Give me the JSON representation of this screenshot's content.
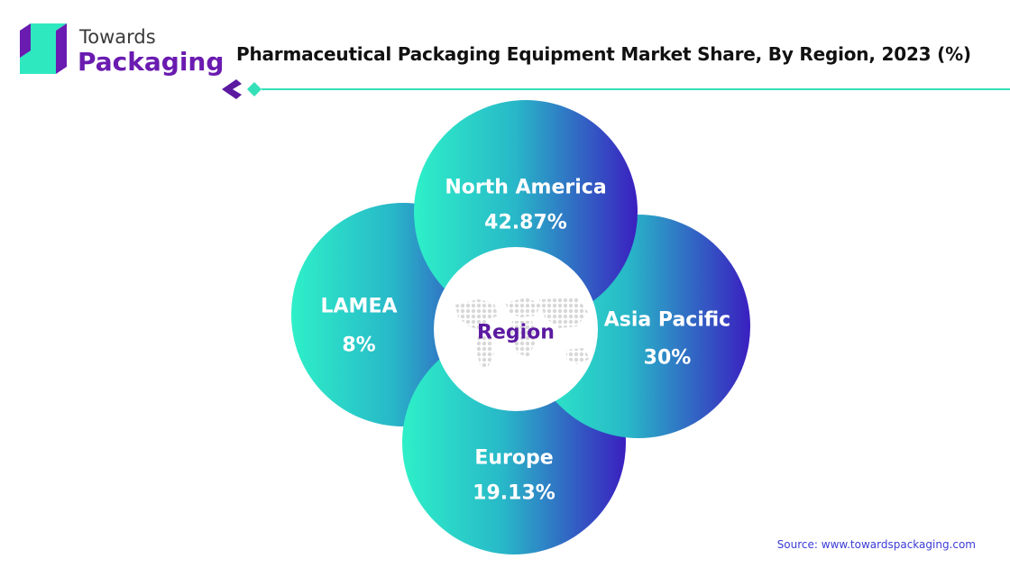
{
  "brand": {
    "line1": "Towards",
    "line2": "Packaging"
  },
  "title": "Pharmaceutical Packaging Equipment Market Share, By Region, 2023 (%)",
  "colors": {
    "teal": "#2ee8c0",
    "indigo": "#3a1fc0",
    "purple": "#6a1bb0",
    "accent": "#33e0b8"
  },
  "chart_data": {
    "type": "pie",
    "center_label": "Region",
    "categories": [
      "North America",
      "Asia Pacific",
      "Europe",
      "LAMEA"
    ],
    "values": [
      42.87,
      30,
      19.13,
      8
    ],
    "value_labels": [
      "42.87%",
      "30%",
      "19.13%",
      "8%"
    ]
  },
  "source": "Source: www.towardspackaging.com"
}
